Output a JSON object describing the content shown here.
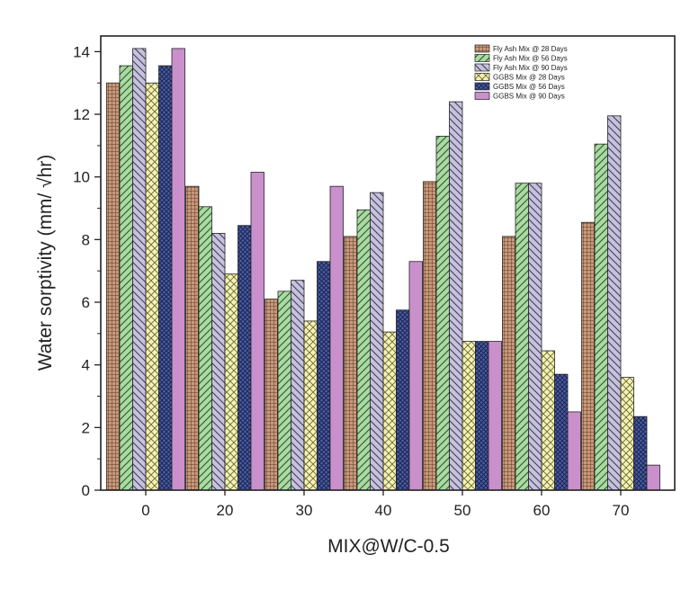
{
  "chart_data": {
    "type": "bar",
    "title": "",
    "xlabel": "MIX@W/C-0.5",
    "ylabel": "Water sorptivity (mm/ √hr)",
    "categories": [
      "0",
      "20",
      "30",
      "40",
      "50",
      "60",
      "70"
    ],
    "ylim": [
      0,
      14.5
    ],
    "yticks": [
      "0",
      "2",
      "4",
      "6",
      "8",
      "10",
      "12",
      "14"
    ],
    "grid": false,
    "legend_position": "top-right",
    "series": [
      {
        "name": "Fly Ash Mix @ 28  Days",
        "color": "#c9997a",
        "pattern": "grid",
        "values": [
          13.0,
          9.7,
          6.1,
          8.1,
          9.85,
          8.1,
          8.55
        ]
      },
      {
        "name": "Fly Ash Mix @ 56  Days",
        "color": "#a8dba0",
        "pattern": "diagonal-right",
        "values": [
          13.55,
          9.05,
          6.35,
          8.95,
          11.3,
          9.8,
          11.05
        ]
      },
      {
        "name": "Fly Ash Mix @ 90 Days",
        "color": "#c6c2dd",
        "pattern": "diagonal-left",
        "values": [
          14.1,
          8.2,
          6.7,
          9.5,
          12.4,
          9.8,
          11.95
        ]
      },
      {
        "name": "GGBS Mix @ 28  Days",
        "color": "#f4f2b4",
        "pattern": "crosshatch",
        "values": [
          13.0,
          6.9,
          5.4,
          5.05,
          4.75,
          4.45,
          3.6
        ]
      },
      {
        "name": "GGBS Mix @ 56  Days",
        "color": "#4a5ea6",
        "pattern": "crosshatch-dense",
        "values": [
          13.55,
          8.45,
          7.3,
          5.75,
          4.75,
          3.7,
          2.35
        ]
      },
      {
        "name": "GGBS Mix @ 90 Days",
        "color": "#c990cc",
        "pattern": "solid",
        "values": [
          14.1,
          10.15,
          9.7,
          7.3,
          4.75,
          2.5,
          0.8
        ]
      }
    ]
  }
}
